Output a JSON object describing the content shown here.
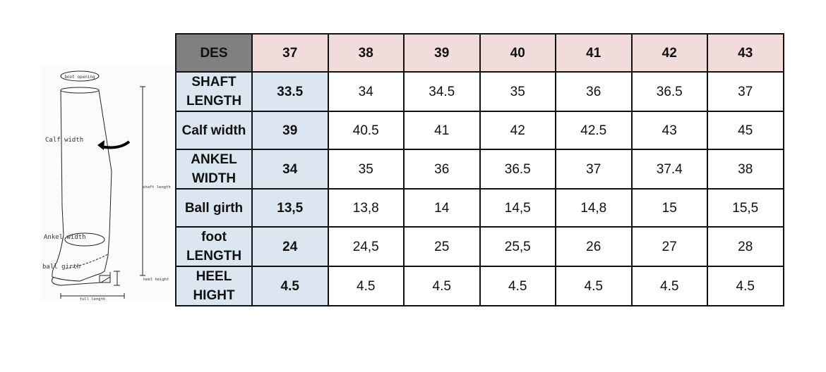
{
  "diagram": {
    "labels": {
      "boot_opening": "boot opening",
      "calf_width": "Calf width",
      "shaft_length": "shaft length",
      "ankel_width": "Ankel width",
      "ball_girth": "ball girth",
      "heel_height": "heel height",
      "full_length": "full length"
    }
  },
  "table": {
    "corner": "DES",
    "sizes": [
      "37",
      "38",
      "39",
      "40",
      "41",
      "42",
      "43"
    ],
    "rows": [
      {
        "label": "SHAFT LENGTH",
        "values": [
          "33.5",
          "34",
          "34.5",
          "35",
          "36",
          "36.5",
          "37"
        ]
      },
      {
        "label": "Calf width",
        "values": [
          "39",
          "40.5",
          "41",
          "42",
          "42.5",
          "43",
          "45"
        ]
      },
      {
        "label": "ANKEL WIDTH",
        "values": [
          "34",
          "35",
          "36",
          "36.5",
          "37",
          "37.4",
          "38"
        ]
      },
      {
        "label": "Ball girth",
        "values": [
          "13,5",
          "13,8",
          "14",
          "14,5",
          "14,8",
          "15",
          "15,5"
        ]
      },
      {
        "label": "foot LENGTH",
        "values": [
          "24",
          "24,5",
          "25",
          "25,5",
          "26",
          "27",
          "28"
        ]
      },
      {
        "label": "HEEL HIGHT",
        "values": [
          "4.5",
          "4.5",
          "4.5",
          "4.5",
          "4.5",
          "4.5",
          "4.5"
        ]
      }
    ]
  },
  "colors": {
    "header": "#f2dcdb",
    "corner": "#808080",
    "label": "#dce6f1"
  }
}
